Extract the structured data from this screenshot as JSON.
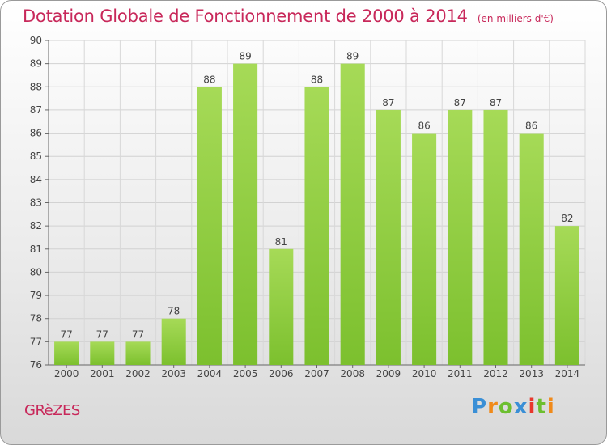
{
  "chart_data": {
    "type": "bar",
    "title": "Dotation Globale de Fonctionnement de 2000 à 2014",
    "subtitle": "(en milliers d'€)",
    "categories": [
      "2000",
      "2001",
      "2002",
      "2003",
      "2004",
      "2005",
      "2006",
      "2007",
      "2008",
      "2009",
      "2010",
      "2011",
      "2012",
      "2013",
      "2014"
    ],
    "values": [
      77,
      77,
      77,
      78,
      88,
      89,
      81,
      88,
      89,
      87,
      86,
      87,
      87,
      86,
      82
    ],
    "ylim": [
      76,
      90
    ],
    "yticks": [
      76,
      77,
      78,
      79,
      80,
      81,
      82,
      83,
      84,
      85,
      86,
      87,
      88,
      89,
      90
    ],
    "grid": true,
    "bar_color": "#7cc02e",
    "bar_color_light": "#a6da57"
  },
  "commune": "GRèZES",
  "logo": {
    "text": "Proxiti",
    "colors": [
      "#3a8fd6",
      "#f08a1a",
      "#6cbf2f",
      "#3a8fd6",
      "#e8372c",
      "#6cbf2f",
      "#f08a1a"
    ]
  }
}
